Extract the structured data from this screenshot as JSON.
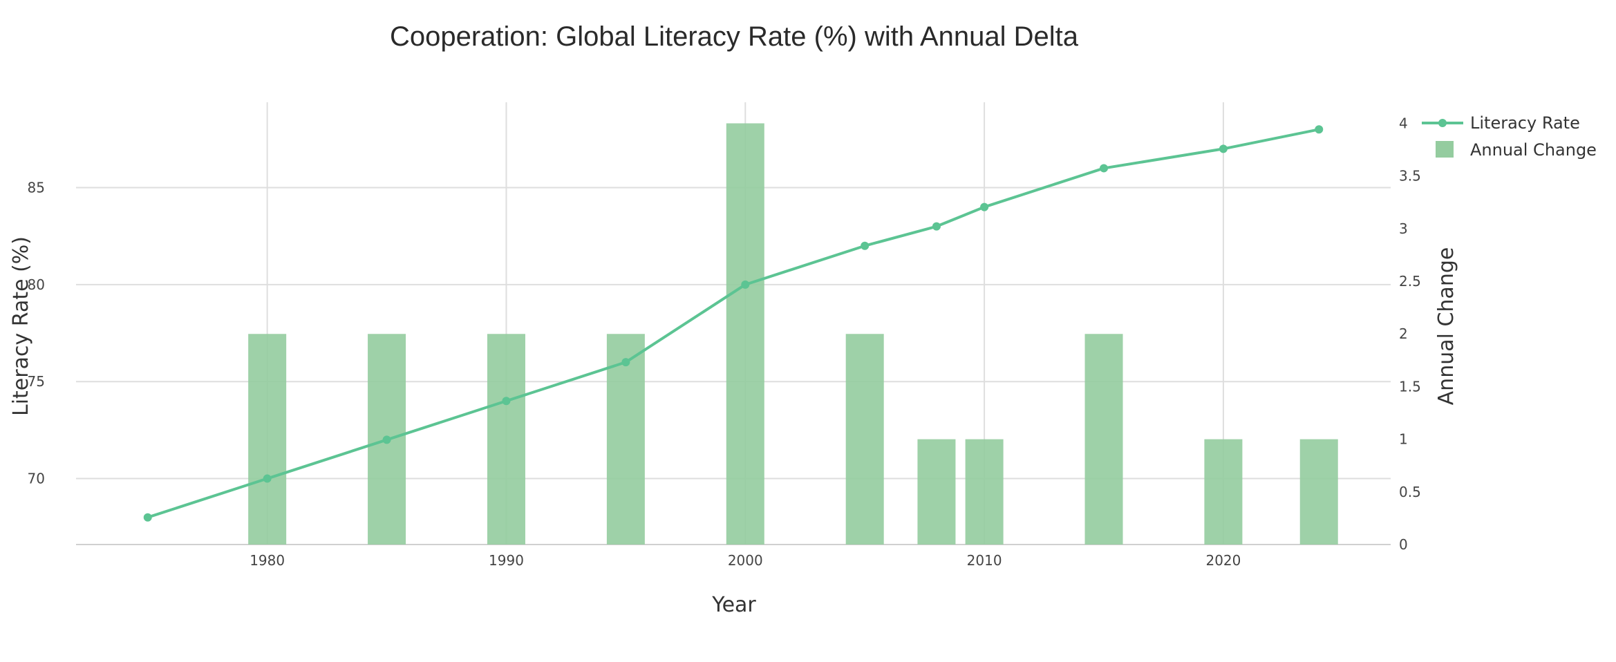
{
  "chart_data": {
    "type": "bar+line",
    "title": "Cooperation: Global Literacy Rate (%) with Annual Delta",
    "xlabel": "Year",
    "ylabel": "Literacy Rate (%)",
    "y2label": "Annual Change",
    "x_ticks": [
      1980,
      1990,
      2000,
      2010,
      2020
    ],
    "y_ticks": [
      70,
      75,
      80,
      85
    ],
    "y2_ticks": [
      "0",
      "0.5",
      "1",
      "1.5",
      "2",
      "2.5",
      "3",
      "3.5",
      "4"
    ],
    "xlim": [
      1972,
      2027
    ],
    "ylim": [
      66.6,
      89.4
    ],
    "y2lim": [
      0,
      4.2
    ],
    "grid": true,
    "legend": "top-right",
    "colors": {
      "line": "#5cc493",
      "bar": "#94cc9f"
    },
    "series": [
      {
        "name": "Literacy Rate",
        "type": "line",
        "axis": "left",
        "x": [
          1975,
          1980,
          1985,
          1990,
          1995,
          2000,
          2005,
          2008,
          2010,
          2015,
          2020,
          2024
        ],
        "values": [
          68,
          70,
          72,
          74,
          76,
          80,
          82,
          83,
          84,
          86,
          87,
          88
        ]
      },
      {
        "name": "Annual Change",
        "type": "bar",
        "axis": "right",
        "x": [
          1980,
          1985,
          1990,
          1995,
          2000,
          2005,
          2008,
          2010,
          2015,
          2020,
          2024
        ],
        "values": [
          2,
          2,
          2,
          2,
          4,
          2,
          1,
          1,
          2,
          1,
          1
        ]
      }
    ]
  }
}
